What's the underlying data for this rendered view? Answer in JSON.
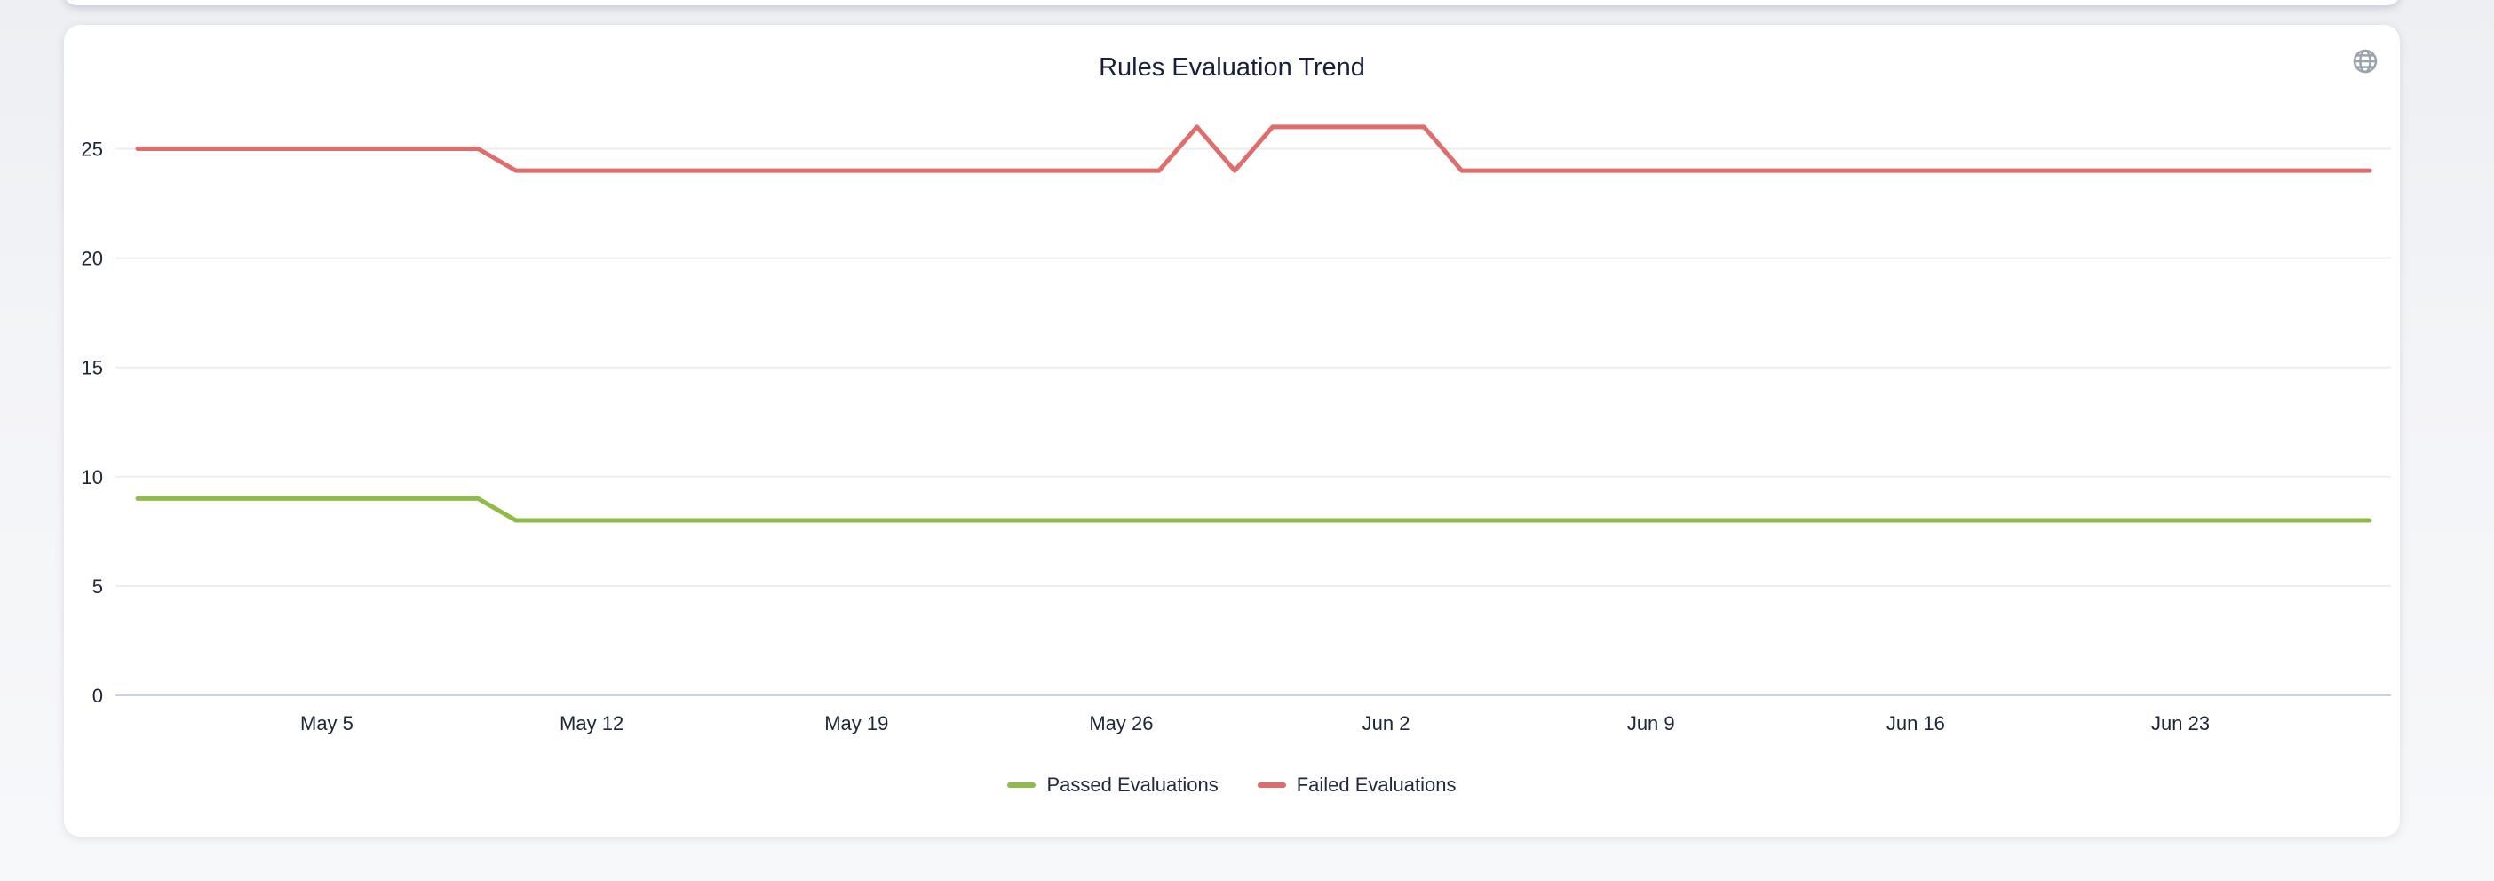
{
  "header": {
    "title": "Rules Evaluation Trend",
    "globe_icon": "globe"
  },
  "colors": {
    "passed_line": "#8fbc47",
    "failed_line": "#e06c6c",
    "gridline": "#ededef",
    "axis_line": "#c9d1e3",
    "axis_text": "#1d2637",
    "title_text": "#17203a",
    "icon_gray": "#9aa2ac",
    "card_bg": "#ffffff"
  },
  "chart_data": {
    "type": "line",
    "title": "Rules Evaluation Trend",
    "xlabel": "",
    "ylabel": "",
    "ylim": [
      0,
      26.6
    ],
    "yticks": [
      0,
      5,
      10,
      15,
      20,
      25
    ],
    "grid": true,
    "legend_position": "bottom",
    "x_tick_labels": [
      "May 5",
      "May 12",
      "May 19",
      "May 26",
      "Jun 2",
      "Jun 9",
      "Jun 16",
      "Jun 23"
    ],
    "x": [
      "Apr 30",
      "May 1",
      "May 2",
      "May 3",
      "May 4",
      "May 5",
      "May 6",
      "May 7",
      "May 8",
      "May 9",
      "May 10",
      "May 11",
      "May 12",
      "May 13",
      "May 14",
      "May 15",
      "May 16",
      "May 17",
      "May 18",
      "May 19",
      "May 20",
      "May 21",
      "May 22",
      "May 23",
      "May 24",
      "May 25",
      "May 26",
      "May 27",
      "May 28",
      "May 29",
      "May 30",
      "May 31",
      "Jun 1",
      "Jun 2",
      "Jun 3",
      "Jun 4",
      "Jun 5",
      "Jun 6",
      "Jun 7",
      "Jun 8",
      "Jun 9",
      "Jun 10",
      "Jun 11",
      "Jun 12",
      "Jun 13",
      "Jun 14",
      "Jun 15",
      "Jun 16",
      "Jun 17",
      "Jun 18",
      "Jun 19",
      "Jun 20",
      "Jun 21",
      "Jun 22",
      "Jun 23",
      "Jun 24",
      "Jun 25",
      "Jun 26",
      "Jun 27",
      "Jun 28"
    ],
    "series": [
      {
        "name": "Passed Evaluations",
        "color": "#8fbc47",
        "values": [
          9,
          9,
          9,
          9,
          9,
          9,
          9,
          9,
          9,
          9,
          8,
          8,
          8,
          8,
          8,
          8,
          8,
          8,
          8,
          8,
          8,
          8,
          8,
          8,
          8,
          8,
          8,
          8,
          8,
          8,
          8,
          8,
          8,
          8,
          8,
          8,
          8,
          8,
          8,
          8,
          8,
          8,
          8,
          8,
          8,
          8,
          8,
          8,
          8,
          8,
          8,
          8,
          8,
          8,
          8,
          8,
          8,
          8,
          8,
          8
        ]
      },
      {
        "name": "Failed Evaluations",
        "color": "#e06c6c",
        "values": [
          25,
          25,
          25,
          25,
          25,
          25,
          25,
          25,
          25,
          25,
          24,
          24,
          24,
          24,
          24,
          24,
          24,
          24,
          24,
          24,
          24,
          24,
          24,
          24,
          24,
          24,
          24,
          24,
          26,
          24,
          26,
          26,
          26,
          26,
          26,
          24,
          24,
          24,
          24,
          24,
          24,
          24,
          24,
          24,
          24,
          24,
          24,
          24,
          24,
          24,
          24,
          24,
          24,
          24,
          24,
          24,
          24,
          24,
          24,
          24
        ]
      }
    ]
  }
}
